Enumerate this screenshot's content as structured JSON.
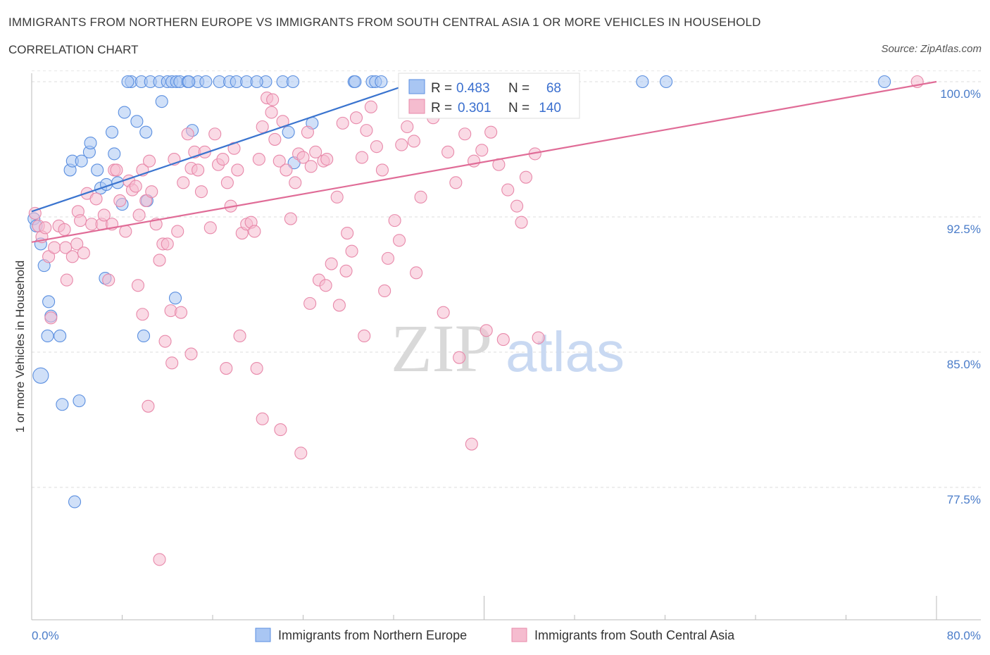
{
  "header": {
    "title": "IMMIGRANTS FROM NORTHERN EUROPE VS IMMIGRANTS FROM SOUTH CENTRAL ASIA 1 OR MORE VEHICLES IN HOUSEHOLD",
    "subtitle": "CORRELATION CHART",
    "source": "Source: ZipAtlas.com"
  },
  "watermark": {
    "part1": "ZIP",
    "part2": "atlas"
  },
  "chart_data": {
    "type": "scatter",
    "title": "IMMIGRANTS FROM NORTHERN EUROPE VS IMMIGRANTS FROM SOUTH CENTRAL ASIA 1 OR MORE VEHICLES IN HOUSEHOLD",
    "ylabel": "1 or more Vehicles in Household",
    "xlabel": "",
    "xlim": [
      0,
      80
    ],
    "ylim": [
      70,
      100.6
    ],
    "x_tick_labels": {
      "left": "0.0%",
      "right": "80.0%"
    },
    "y_ticks": [
      {
        "value": 100.0,
        "label": "100.0%"
      },
      {
        "value": 92.5,
        "label": "92.5%"
      },
      {
        "value": 85.0,
        "label": "85.0%"
      },
      {
        "value": 77.5,
        "label": "77.5%"
      }
    ],
    "grid": true,
    "legend_placement": "bottom-center",
    "stats_box": [
      {
        "r_label": "R = ",
        "r": "0.483",
        "n_label": "N = ",
        "n": "68"
      },
      {
        "r_label": "R = ",
        "r": "0.301",
        "n_label": "N = ",
        "n": "140"
      }
    ],
    "series": [
      {
        "name": "Immigrants from Northern Europe",
        "color": "#5b8fe0",
        "fill": "#a9c6f3",
        "trend": {
          "x": [
            0,
            34.5
          ],
          "y": [
            92.8,
            100.1
          ],
          "color": "#3a74cf"
        },
        "points": [
          [
            0.2,
            92.4
          ],
          [
            0.4,
            92.0
          ],
          [
            0.8,
            91.0
          ],
          [
            1.1,
            89.8
          ],
          [
            1.5,
            87.8
          ],
          [
            1.7,
            87.0
          ],
          [
            1.4,
            85.9
          ],
          [
            2.5,
            85.9
          ],
          [
            0.8,
            83.7
          ],
          [
            2.7,
            82.1
          ],
          [
            4.2,
            82.3
          ],
          [
            3.8,
            76.7
          ],
          [
            3.4,
            95.1
          ],
          [
            3.6,
            95.6
          ],
          [
            4.4,
            95.6
          ],
          [
            5.1,
            96.1
          ],
          [
            5.2,
            96.6
          ],
          [
            5.8,
            95.1
          ],
          [
            6.1,
            94.1
          ],
          [
            6.6,
            94.3
          ],
          [
            7.1,
            97.2
          ],
          [
            7.3,
            96.0
          ],
          [
            8.0,
            93.2
          ],
          [
            8.2,
            98.3
          ],
          [
            8.8,
            100.0
          ],
          [
            9.3,
            97.8
          ],
          [
            9.7,
            100.0
          ],
          [
            10.1,
            97.2
          ],
          [
            10.2,
            93.4
          ],
          [
            10.5,
            100.0
          ],
          [
            11.3,
            100.0
          ],
          [
            11.5,
            98.9
          ],
          [
            12.0,
            100.0
          ],
          [
            12.4,
            100.0
          ],
          [
            12.8,
            100.0
          ],
          [
            13.1,
            100.0
          ],
          [
            13.8,
            100.0
          ],
          [
            14.2,
            97.3
          ],
          [
            14.7,
            100.0
          ],
          [
            15.4,
            100.0
          ],
          [
            16.6,
            100.0
          ],
          [
            17.5,
            100.0
          ],
          [
            18.1,
            100.0
          ],
          [
            19.0,
            100.0
          ],
          [
            20.7,
            100.0
          ],
          [
            22.2,
            100.0
          ],
          [
            23.1,
            100.0
          ],
          [
            22.7,
            97.2
          ],
          [
            23.2,
            95.5
          ],
          [
            24.8,
            97.7
          ],
          [
            28.5,
            100.0
          ],
          [
            28.6,
            100.0
          ],
          [
            30.1,
            100.0
          ],
          [
            30.4,
            100.0
          ],
          [
            30.9,
            100.0
          ],
          [
            33.8,
            100.0
          ],
          [
            34.3,
            100.0
          ],
          [
            34.1,
            99.9
          ],
          [
            54.0,
            100.0
          ],
          [
            56.1,
            100.0
          ],
          [
            75.4,
            100.0
          ],
          [
            6.5,
            89.1
          ],
          [
            7.6,
            94.4
          ],
          [
            8.5,
            100.0
          ],
          [
            9.9,
            85.9
          ],
          [
            12.7,
            88.0
          ],
          [
            13.9,
            100.0
          ],
          [
            19.9,
            100.0
          ]
        ]
      },
      {
        "name": "Immigrants from South Central Asia",
        "color": "#e889aa",
        "fill": "#f5bccf",
        "trend": {
          "x": [
            0,
            80
          ],
          "y": [
            91.1,
            100.0
          ],
          "color": "#e06c97"
        },
        "points": [
          [
            0.3,
            92.7
          ],
          [
            0.6,
            92.0
          ],
          [
            0.9,
            91.4
          ],
          [
            1.2,
            91.9
          ],
          [
            1.5,
            90.3
          ],
          [
            1.7,
            86.9
          ],
          [
            2.0,
            90.8
          ],
          [
            2.4,
            92.0
          ],
          [
            2.9,
            91.8
          ],
          [
            3.0,
            90.8
          ],
          [
            3.1,
            89.0
          ],
          [
            3.6,
            90.3
          ],
          [
            4.0,
            91.0
          ],
          [
            4.1,
            92.8
          ],
          [
            4.3,
            92.3
          ],
          [
            4.6,
            90.5
          ],
          [
            4.9,
            93.8
          ],
          [
            5.3,
            92.1
          ],
          [
            5.7,
            93.5
          ],
          [
            6.2,
            92.1
          ],
          [
            6.4,
            92.6
          ],
          [
            6.8,
            89.0
          ],
          [
            7.1,
            92.1
          ],
          [
            7.3,
            95.1
          ],
          [
            7.5,
            95.1
          ],
          [
            7.8,
            93.4
          ],
          [
            8.3,
            91.7
          ],
          [
            8.6,
            94.5
          ],
          [
            8.9,
            94.0
          ],
          [
            9.2,
            94.2
          ],
          [
            9.5,
            92.6
          ],
          [
            9.8,
            95.1
          ],
          [
            10.1,
            93.4
          ],
          [
            10.4,
            95.6
          ],
          [
            10.6,
            93.9
          ],
          [
            11.0,
            92.1
          ],
          [
            11.3,
            90.1
          ],
          [
            11.6,
            91.0
          ],
          [
            12.0,
            91.0
          ],
          [
            12.3,
            87.3
          ],
          [
            12.6,
            95.7
          ],
          [
            12.9,
            91.7
          ],
          [
            13.2,
            87.2
          ],
          [
            13.4,
            94.4
          ],
          [
            13.8,
            97.1
          ],
          [
            14.1,
            95.2
          ],
          [
            14.4,
            96.1
          ],
          [
            14.7,
            95.1
          ],
          [
            15.0,
            93.9
          ],
          [
            15.3,
            96.1
          ],
          [
            15.8,
            91.9
          ],
          [
            16.2,
            97.1
          ],
          [
            16.5,
            95.4
          ],
          [
            16.9,
            95.7
          ],
          [
            17.3,
            94.4
          ],
          [
            17.6,
            93.1
          ],
          [
            17.9,
            96.3
          ],
          [
            18.2,
            95.1
          ],
          [
            18.6,
            91.6
          ],
          [
            19.0,
            92.1
          ],
          [
            19.4,
            92.2
          ],
          [
            19.7,
            91.7
          ],
          [
            20.1,
            95.7
          ],
          [
            20.4,
            97.5
          ],
          [
            20.8,
            99.1
          ],
          [
            21.2,
            98.3
          ],
          [
            21.5,
            96.8
          ],
          [
            21.9,
            95.6
          ],
          [
            22.2,
            97.8
          ],
          [
            22.5,
            95.1
          ],
          [
            22.9,
            92.4
          ],
          [
            23.3,
            94.4
          ],
          [
            23.6,
            96.0
          ],
          [
            24.0,
            95.8
          ],
          [
            24.4,
            97.2
          ],
          [
            24.7,
            95.3
          ],
          [
            25.1,
            96.1
          ],
          [
            25.4,
            89.0
          ],
          [
            25.8,
            95.6
          ],
          [
            26.1,
            95.7
          ],
          [
            26.5,
            89.9
          ],
          [
            27.0,
            93.6
          ],
          [
            27.5,
            97.7
          ],
          [
            27.9,
            91.6
          ],
          [
            28.3,
            90.6
          ],
          [
            28.7,
            98.0
          ],
          [
            29.2,
            95.8
          ],
          [
            29.6,
            97.3
          ],
          [
            30.0,
            98.6
          ],
          [
            30.5,
            96.4
          ],
          [
            31.0,
            95.1
          ],
          [
            31.5,
            90.2
          ],
          [
            32.1,
            92.3
          ],
          [
            32.7,
            96.5
          ],
          [
            33.2,
            97.5
          ],
          [
            33.8,
            96.7
          ],
          [
            34.4,
            93.6
          ],
          [
            35.0,
            100.0
          ],
          [
            35.5,
            98.0
          ],
          [
            36.1,
            99.5
          ],
          [
            36.8,
            96.1
          ],
          [
            37.5,
            94.4
          ],
          [
            38.3,
            97.1
          ],
          [
            39.1,
            95.6
          ],
          [
            39.8,
            96.2
          ],
          [
            40.6,
            97.2
          ],
          [
            41.3,
            95.4
          ],
          [
            42.1,
            94.0
          ],
          [
            42.9,
            93.1
          ],
          [
            43.7,
            94.7
          ],
          [
            44.5,
            96.0
          ],
          [
            45.4,
            100.0
          ],
          [
            17.2,
            84.1
          ],
          [
            18.4,
            85.9
          ],
          [
            19.9,
            84.1
          ],
          [
            20.4,
            81.3
          ],
          [
            21.3,
            99.0
          ],
          [
            22.0,
            80.7
          ],
          [
            23.8,
            79.4
          ],
          [
            24.6,
            87.7
          ],
          [
            26.0,
            88.7
          ],
          [
            27.2,
            87.6
          ],
          [
            27.8,
            89.5
          ],
          [
            29.4,
            85.9
          ],
          [
            31.2,
            88.4
          ],
          [
            32.5,
            91.2
          ],
          [
            34.0,
            89.4
          ],
          [
            36.4,
            87.2
          ],
          [
            37.8,
            84.7
          ],
          [
            38.9,
            79.9
          ],
          [
            40.2,
            86.2
          ],
          [
            41.7,
            85.7
          ],
          [
            43.3,
            92.2
          ],
          [
            44.8,
            85.8
          ],
          [
            10.3,
            82.0
          ],
          [
            11.8,
            85.6
          ],
          [
            12.4,
            84.4
          ],
          [
            14.1,
            84.9
          ],
          [
            11.3,
            73.5
          ],
          [
            9.4,
            88.7
          ],
          [
            9.8,
            87.1
          ],
          [
            78.3,
            100.0
          ]
        ]
      }
    ]
  }
}
